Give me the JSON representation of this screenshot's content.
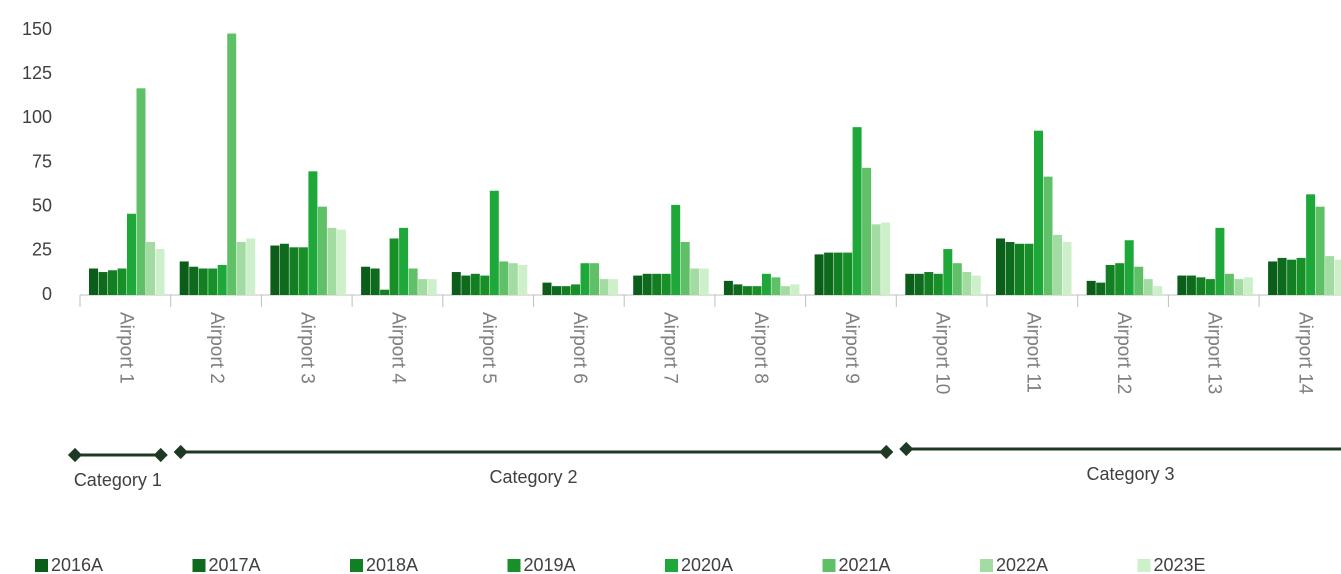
{
  "chart_data": {
    "type": "bar",
    "categories": [
      "Airport 1",
      "Airport 2",
      "Airport 3",
      "Airport 4",
      "Airport 5",
      "Airport 6",
      "Airport 7",
      "Airport 8",
      "Airport 9",
      "Airport 10",
      "Airport 11",
      "Airport 12",
      "Airport 13",
      "Airport 14"
    ],
    "series": [
      {
        "name": "2016A",
        "color": "#0b5e1a",
        "values": [
          15,
          19,
          28,
          16,
          13,
          7,
          11,
          8,
          23,
          12,
          32,
          8,
          11,
          19
        ]
      },
      {
        "name": "2017A",
        "color": "#0e6b1e",
        "values": [
          13,
          16,
          29,
          15,
          11,
          5,
          12,
          6,
          24,
          12,
          30,
          7,
          11,
          21
        ]
      },
      {
        "name": "2018A",
        "color": "#137f23",
        "values": [
          14,
          15,
          27,
          3,
          12,
          5,
          12,
          5,
          24,
          13,
          29,
          17,
          10,
          20
        ]
      },
      {
        "name": "2019A",
        "color": "#179127",
        "values": [
          15,
          15,
          27,
          32,
          11,
          6,
          12,
          5,
          24,
          12,
          29,
          18,
          9,
          21
        ]
      },
      {
        "name": "2020A",
        "color": "#1fa83a",
        "values": [
          46,
          17,
          70,
          38,
          59,
          18,
          51,
          12,
          95,
          26,
          93,
          31,
          38,
          57
        ]
      },
      {
        "name": "2021A",
        "color": "#5fc067",
        "values": [
          117,
          148,
          50,
          15,
          19,
          18,
          30,
          10,
          72,
          18,
          67,
          16,
          12,
          50
        ]
      },
      {
        "name": "2022A",
        "color": "#a3dca2",
        "values": [
          30,
          30,
          38,
          9,
          18,
          9,
          15,
          5,
          40,
          13,
          34,
          9,
          9,
          22
        ]
      },
      {
        "name": "2023E",
        "color": "#cdf0cb",
        "values": [
          26,
          32,
          37,
          9,
          17,
          9,
          15,
          6,
          41,
          11,
          30,
          5,
          10,
          20
        ]
      }
    ],
    "ylim": [
      0,
      150
    ],
    "yticks": [
      0,
      25,
      50,
      75,
      100,
      125,
      150
    ],
    "annotations": [
      {
        "text": "Category 1",
        "from": "Airport 1",
        "to": "Airport 1"
      },
      {
        "text": "Category 2",
        "from": "Airport 2",
        "to": "Airport 9"
      },
      {
        "text": "Category 3",
        "from": "Airport 10",
        "to": "Airport 14"
      }
    ]
  }
}
